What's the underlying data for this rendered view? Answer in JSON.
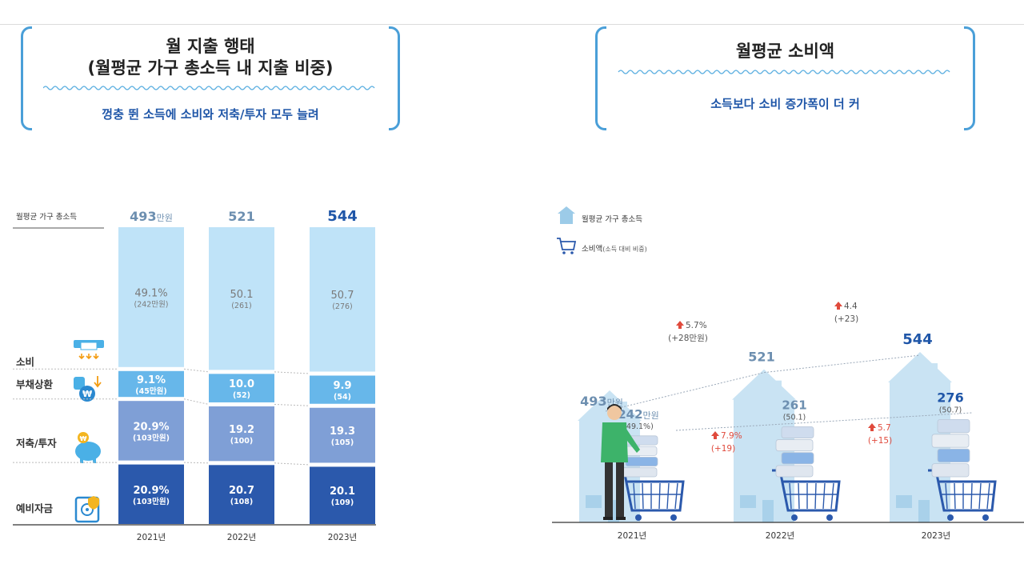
{
  "left_header": {
    "title_line1": "월 지출 행태",
    "title_line2": "(월평균 가구 총소득 내 지출 비중)",
    "subtitle": "껑충 뛴 소득에 소비와 저축/투자 모두 늘려"
  },
  "right_header": {
    "title": "월평균 소비액",
    "subtitle": "소득보다 소비 증가폭이 더 커"
  },
  "chart_data": [
    {
      "type": "bar",
      "stacked": true,
      "categories": [
        "2021년",
        "2022년",
        "2023년"
      ],
      "total_label": "월평균 가구 총소득",
      "totals": [
        {
          "value": 493,
          "display": "493",
          "unit": "만원"
        },
        {
          "value": 521,
          "display": "521",
          "unit": ""
        },
        {
          "value": 544,
          "display": "544",
          "unit": ""
        }
      ],
      "series": [
        {
          "name": "예비자금",
          "color": "#2b59ac",
          "text_color": "#ffffff",
          "pct": [
            "20.9%",
            "20.7",
            "20.1"
          ],
          "amt": [
            "(103만원)",
            "(108)",
            "(109)"
          ],
          "values": [
            20.9,
            20.7,
            20.1
          ]
        },
        {
          "name": "저축/투자",
          "color": "#7f9fd6",
          "text_color": "#ffffff",
          "pct": [
            "20.9%",
            "19.2",
            "19.3"
          ],
          "amt": [
            "(103만원)",
            "(100)",
            "(105)"
          ],
          "values": [
            20.9,
            19.2,
            19.3
          ]
        },
        {
          "name": "부채상환",
          "color": "#67b7ea",
          "text_color": "#ffffff",
          "pct": [
            "9.1%",
            "10.0",
            "9.9"
          ],
          "amt": [
            "(45만원)",
            "(52)",
            "(54)"
          ],
          "values": [
            9.1,
            10.0,
            9.9
          ]
        },
        {
          "name": "소비",
          "color": "#bfe3f8",
          "text_color": "#7a7a7a",
          "pct": [
            "49.1%",
            "50.1",
            "50.7"
          ],
          "amt": [
            "(242만원)",
            "(261)",
            "(276)"
          ],
          "values": [
            49.1,
            50.1,
            50.7
          ]
        }
      ]
    },
    {
      "type": "bar",
      "categories": [
        "2021년",
        "2022년",
        "2023년"
      ],
      "legend": [
        {
          "label": "월평균 가구 총소득",
          "suffix": "",
          "icon": "house-icon"
        },
        {
          "label": "소비액",
          "suffix": "(소득 대비 비중)",
          "icon": "cart-icon"
        }
      ],
      "income": [
        {
          "value": 493,
          "display": "493",
          "unit": "만원"
        },
        {
          "value": 521,
          "display": "521",
          "unit": ""
        },
        {
          "value": 544,
          "display": "544",
          "unit": ""
        }
      ],
      "spending": [
        {
          "value": 242,
          "display": "242",
          "unit": "만원",
          "share": "(49.1%)"
        },
        {
          "value": 261,
          "display": "261",
          "unit": "",
          "share": "(50.1)"
        },
        {
          "value": 276,
          "display": "276",
          "unit": "",
          "share": "(50.7)"
        }
      ],
      "income_growth": [
        {
          "pct": "5.7%",
          "amt": "(+28만원)"
        },
        {
          "pct": "4.4",
          "amt": "(+23)"
        }
      ],
      "spending_growth": [
        {
          "pct": "7.9%",
          "amt": "(+19)"
        },
        {
          "pct": "5.7",
          "amt": "(+15)"
        }
      ],
      "colors": {
        "house": "#c9e3f3",
        "income_text": "#6d8fb0",
        "highlight": "#1f56a8",
        "up_arrow": "#e04a3c",
        "cart": "#2b59ac"
      }
    }
  ]
}
